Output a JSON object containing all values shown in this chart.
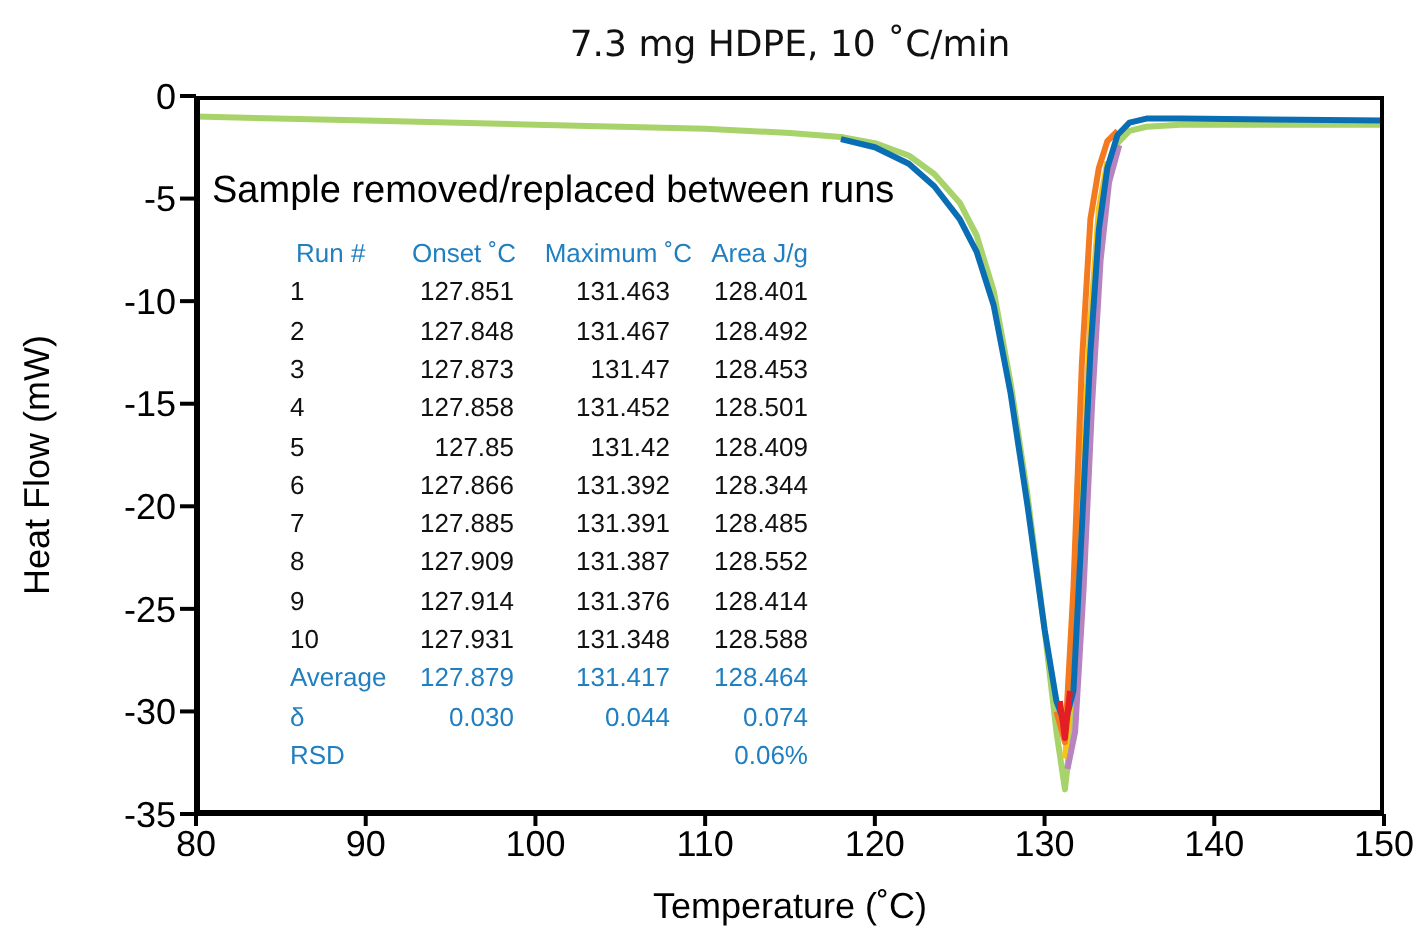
{
  "chart_data": {
    "type": "line",
    "title": "7.3 mg HDPE, 10 ˚C/min",
    "xlabel": "Temperature (˚C)",
    "ylabel": "Heat Flow (mW)",
    "series": [
      {
        "color": "#a8d26a",
        "x": [
          80,
          90,
          100,
          110,
          115,
          118,
          120,
          122,
          123.5,
          125,
          126,
          127,
          128,
          129,
          130,
          130.7,
          131.2,
          131.7,
          132.2,
          132.7,
          133.2,
          133.7,
          134.3,
          135,
          136,
          138,
          150
        ],
        "values": [
          -1.0,
          -1.2,
          -1.4,
          -1.6,
          -1.8,
          -2.0,
          -2.3,
          -2.9,
          -3.8,
          -5.2,
          -6.8,
          -9.5,
          -14,
          -19.5,
          -26,
          -31,
          -33.8,
          -30,
          -22,
          -14,
          -7.5,
          -4,
          -2.3,
          -1.7,
          -1.5,
          -1.4,
          -1.4
        ]
      },
      {
        "color": "#f5c518",
        "x": [
          131.2,
          131.7,
          132.2,
          132.7,
          133.2,
          133.7
        ],
        "values": [
          -32.3,
          -28,
          -19,
          -11,
          -5.5,
          -3.2
        ]
      },
      {
        "color": "#b784c0",
        "x": [
          131.35,
          131.8,
          132.3,
          132.8,
          133.3,
          133.8,
          134.4
        ],
        "values": [
          -32.8,
          -31,
          -24,
          -15,
          -8,
          -4.2,
          -2.4
        ]
      },
      {
        "color": "#f47a20",
        "x": [
          130.7,
          131.2,
          131.7,
          132.2,
          132.7,
          133.2,
          133.7,
          134.3
        ],
        "values": [
          -30,
          -31.5,
          -24,
          -13,
          -6,
          -3.5,
          -2.2,
          -1.7
        ]
      },
      {
        "color": "#0a6eb4",
        "x": [
          118,
          120,
          122,
          123.5,
          125,
          126,
          127,
          128,
          129,
          130,
          130.7,
          131.2,
          131.7,
          132.2,
          132.7,
          133.2,
          133.7,
          134.3,
          135,
          136,
          138,
          150
        ],
        "values": [
          -2.1,
          -2.5,
          -3.3,
          -4.4,
          -6.0,
          -7.6,
          -10.2,
          -14.5,
          -20,
          -26,
          -29.5,
          -30.6,
          -29,
          -21,
          -12.5,
          -6.5,
          -3.5,
          -1.9,
          -1.3,
          -1.1,
          -1.1,
          -1.2
        ]
      },
      {
        "color": "#e31e24",
        "x": [
          130.9,
          131.2,
          131.5
        ],
        "values": [
          -29.5,
          -31.3,
          -29
        ]
      }
    ],
    "xlim": [
      80,
      150
    ],
    "xticks": [
      80,
      90,
      100,
      110,
      120,
      130,
      140,
      150
    ],
    "ylim": [
      -35,
      0
    ],
    "yticks": [
      -35,
      -30,
      -25,
      -20,
      -15,
      -10,
      -5,
      0
    ],
    "grid": false,
    "legend": false,
    "marker": "none",
    "line_style": "solid",
    "annotations": [
      "Sample removed/replaced between runs",
      "Run #",
      "Onset ˚C",
      "Maximum ˚C",
      "Area J/g",
      "1",
      "127.851",
      "131.463",
      "128.401",
      "2",
      "127.848",
      "131.467",
      "128.492",
      "3",
      "127.873",
      "131.47",
      "128.453",
      "4",
      "127.858",
      "131.452",
      "128.501",
      "5",
      "127.85",
      "131.42",
      "128.409",
      "6",
      "127.866",
      "131.392",
      "128.344",
      "7",
      "127.885",
      "131.391",
      "128.485",
      "8",
      "127.909",
      "131.387",
      "128.552",
      "9",
      "127.914",
      "131.376",
      "128.414",
      "10",
      "127.931",
      "131.348",
      "128.588",
      "Average",
      "127.879",
      "131.417",
      "128.464",
      "δ",
      "0.030",
      "0.044",
      "0.074",
      "RSD",
      "0.06%"
    ]
  }
}
